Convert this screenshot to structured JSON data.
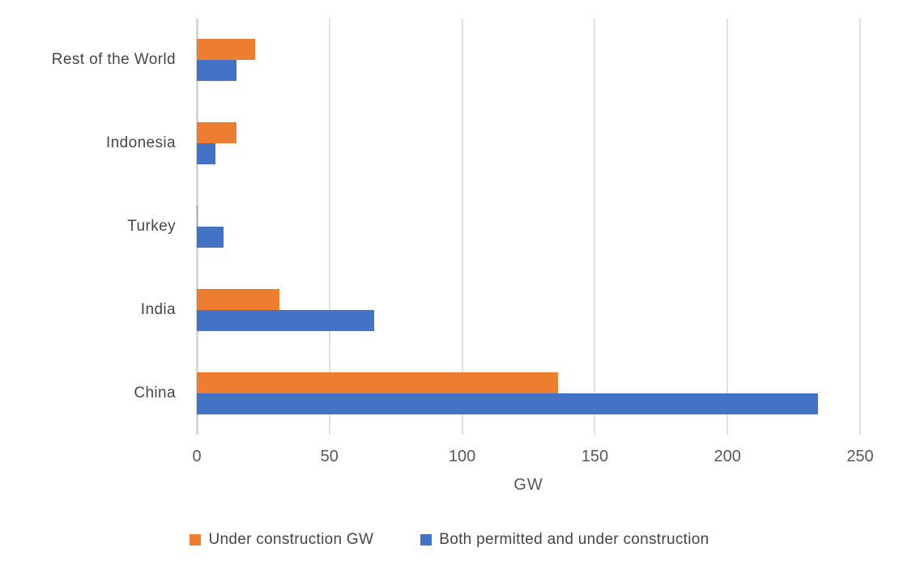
{
  "chart_data": {
    "type": "bar",
    "orientation": "horizontal",
    "categories": [
      "Rest of the World",
      "Indonesia",
      "Turkey",
      "India",
      "China"
    ],
    "series": [
      {
        "name": "Under construction GW",
        "color": "#ED7D31",
        "values": [
          22,
          15,
          0.3,
          31,
          136
        ]
      },
      {
        "name": "Both permitted and under construction",
        "color": "#4472C4",
        "values": [
          15,
          7,
          10,
          67,
          234
        ]
      }
    ],
    "xlabel": "GW",
    "xlim": [
      0,
      250
    ],
    "xticks": [
      0,
      50,
      100,
      150,
      200,
      250
    ],
    "grid": true,
    "legend_position": "bottom",
    "title": ""
  },
  "colors": {
    "gridline": "#e0e0e0",
    "axis_line": "#d8d8d8",
    "tick_label": "#595959",
    "category_label": "#45454f",
    "legend_text": "#464646",
    "background": "#ffffff"
  }
}
